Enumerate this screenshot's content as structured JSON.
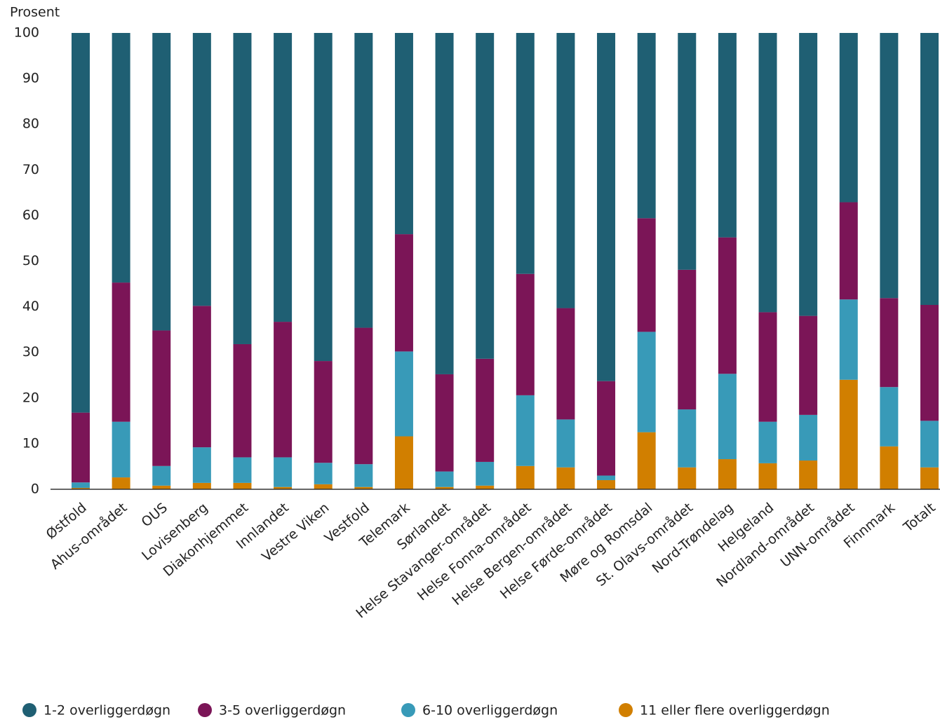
{
  "chart_data": {
    "type": "stacked_bar",
    "y_label": "Prosent",
    "categories": [
      "Østfold",
      "Ahus-området",
      "OUS",
      "Lovisenberg",
      "Diakonhjemmet",
      "Innlandet",
      "Vestre Viken",
      "Vestfold",
      "Telemark",
      "Sørlandet",
      "Helse Stavanger-området",
      "Helse Fonna-området",
      "Helse Bergen-området",
      "Helse Førde-området",
      "Møre og Romsdal",
      "St. Olavs-området",
      "Nord-Trøndelag",
      "Helgeland",
      "Nordland-området",
      "UNN-området",
      "Finnmark",
      "Totalt"
    ],
    "series": [
      {
        "name": "11 eller flere overliggerdøgn",
        "color": "#d17f00",
        "values": [
          0.3,
          2.6,
          0.8,
          1.4,
          1.4,
          0.5,
          1.1,
          0.5,
          11.6,
          0.5,
          0.8,
          5.1,
          4.8,
          2.0,
          12.5,
          4.8,
          6.6,
          5.7,
          6.3,
          24.0,
          9.4,
          4.8
        ]
      },
      {
        "name": "6-10 overliggerdøgn",
        "color": "#389ab8",
        "values": [
          1.2,
          12.2,
          4.3,
          7.8,
          5.6,
          6.5,
          4.7,
          5.0,
          18.6,
          3.4,
          5.2,
          15.5,
          10.5,
          1.0,
          22.0,
          12.7,
          18.7,
          9.1,
          10.0,
          17.6,
          13.0,
          10.2
        ]
      },
      {
        "name": "3-5 overliggerdøgn",
        "color": "#7b1557",
        "values": [
          15.3,
          30.5,
          29.7,
          31.0,
          24.8,
          29.7,
          22.3,
          29.9,
          25.7,
          21.3,
          22.6,
          26.6,
          24.4,
          20.7,
          24.9,
          30.6,
          29.9,
          24.0,
          21.7,
          21.3,
          19.5,
          25.4
        ]
      },
      {
        "name": "1-2 overliggerdøgn",
        "color": "#1f5f73",
        "values": [
          83.2,
          54.7,
          65.2,
          59.8,
          68.2,
          63.3,
          71.9,
          64.6,
          44.1,
          74.8,
          71.4,
          52.8,
          60.3,
          76.3,
          40.6,
          51.9,
          44.8,
          61.2,
          62.0,
          37.1,
          58.1,
          59.6
        ]
      }
    ],
    "legend_order": [
      3,
      2,
      1,
      0
    ],
    "ylim": [
      0,
      100
    ],
    "yticks": [
      0,
      10,
      20,
      30,
      40,
      50,
      60,
      70,
      80,
      90,
      100
    ]
  }
}
